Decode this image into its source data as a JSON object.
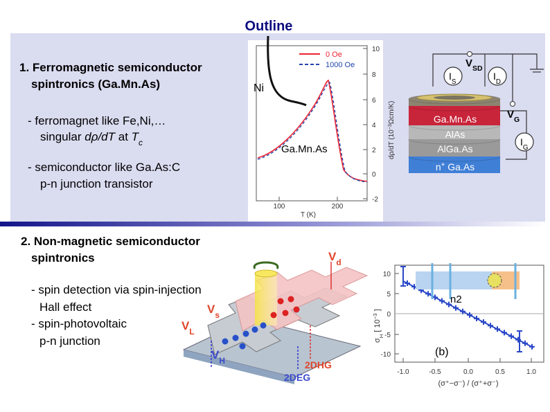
{
  "title": "Outline",
  "section1": {
    "heading": [
      "1. Ferromagnetic semiconductor",
      "spintronics (Ga.Mn.As)"
    ],
    "bullet1": {
      "line1": "- ferromagnet like Fe,Ni,…",
      "line2": [
        "singular ",
        "dρ/dT",
        " at ",
        "T",
        "c"
      ]
    },
    "bullet2": [
      "- semiconductor like Ga.As:C",
      "p-n junction transistor"
    ]
  },
  "section2": {
    "heading": [
      "2. Non-magnetic semiconductor",
      "spintronics"
    ],
    "bullets": [
      "- spin detection via spin-injection",
      "Hall effect",
      "- spin-photovoltaic",
      "p-n junction"
    ]
  },
  "figure_resistivity": {
    "legend": [
      "0 Oe",
      "1000 Oe"
    ],
    "yticks": [
      10,
      8,
      6,
      4,
      2,
      0,
      -2
    ],
    "xticks": [
      100,
      200
    ],
    "xlabel": "T    (K)",
    "ylabel": [
      "dρ/dT  (10",
      "−3",
      "Ωcm/K)"
    ],
    "labels": [
      "Ni",
      "Ga.Mn.As"
    ]
  },
  "figure_device": {
    "vsd": [
      "V",
      "SD"
    ],
    "is": [
      "I",
      "S"
    ],
    "id": [
      "I",
      "D"
    ],
    "vg": [
      "V",
      "G"
    ],
    "ig": [
      "I",
      "G"
    ],
    "layers": [
      "Ga.Mn.As",
      "AlAs",
      "AlGa.As"
    ],
    "substrate": [
      "n",
      "+",
      " Ga.As"
    ]
  },
  "figure_hall": {
    "vd": [
      "V",
      "d"
    ],
    "vs": [
      "V",
      "s"
    ],
    "vl": [
      "V",
      "L"
    ],
    "vh": [
      "V",
      "H"
    ],
    "labels": [
      "2DHG",
      "2DEG"
    ]
  },
  "figure_hall_signal": {
    "yticks": [
      10,
      5,
      0,
      -5,
      -10
    ],
    "xticks": [
      "-1.0",
      "-0.5",
      "0.0",
      "0.5",
      "1.0"
    ],
    "ylabel": [
      "σ",
      "H",
      " [ 10",
      "−3",
      " ]"
    ],
    "xlabel": "(σ⁺−σ⁻) / (σ⁺+σ⁻)",
    "labels": [
      "n2",
      "(b)"
    ]
  }
}
